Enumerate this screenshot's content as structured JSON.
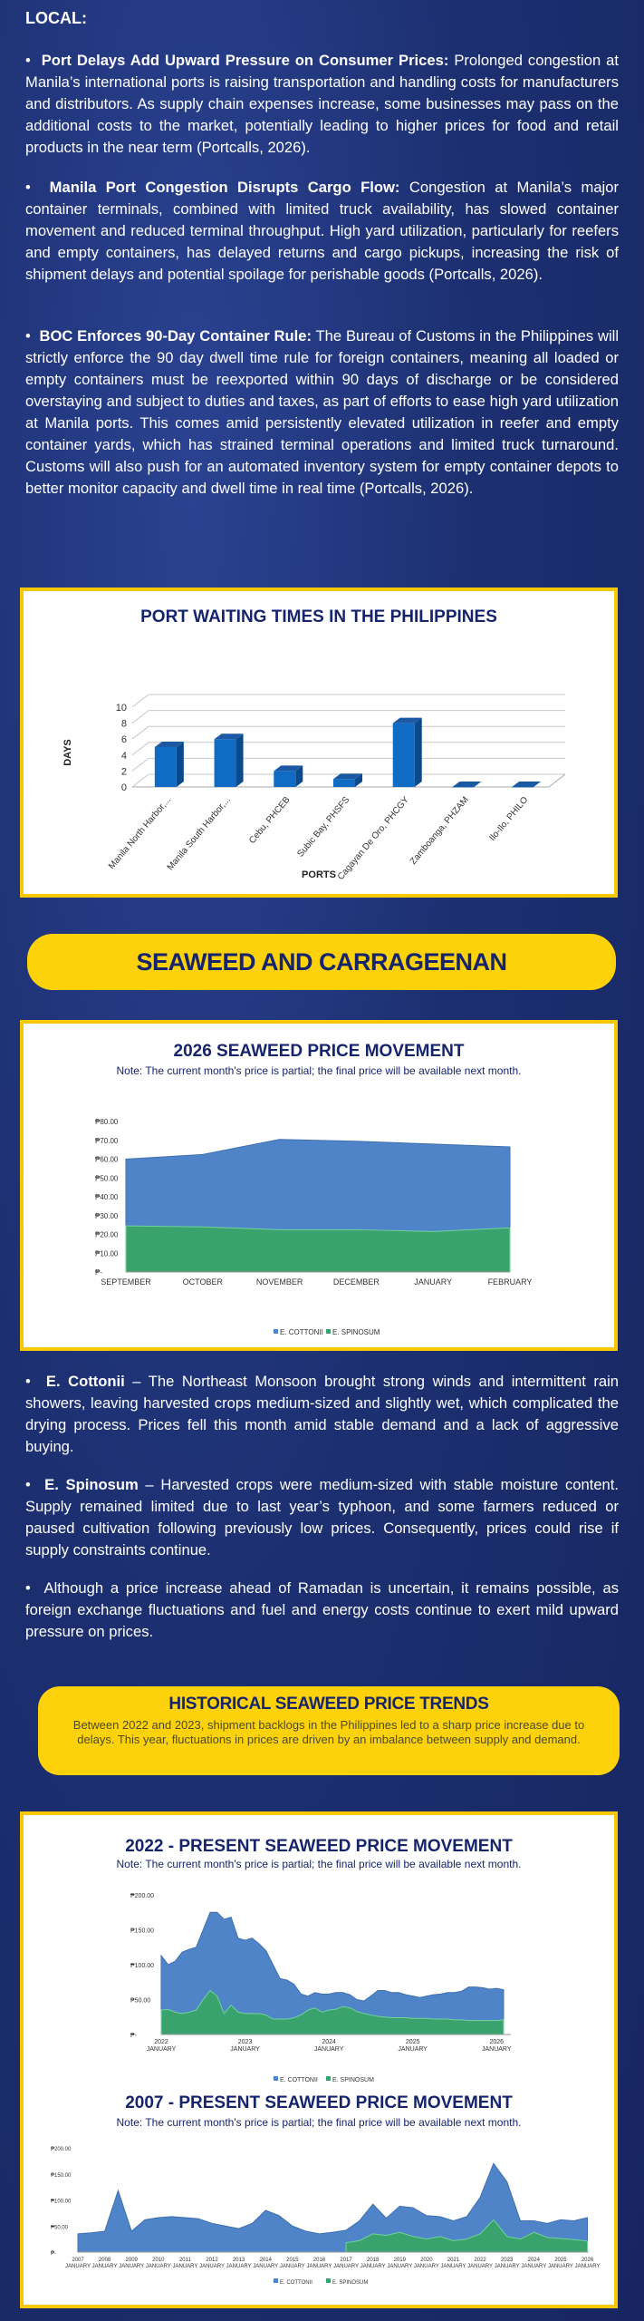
{
  "local": {
    "heading": "LOCAL:",
    "items": [
      {
        "title": "Port Delays Add Upward Pressure on Consumer Prices:",
        "body": " Prolonged congestion at Manila’s international ports is raising transportation and handling costs for manufacturers and distributors. As supply chain expenses increase, some businesses may pass on the additional costs to the market, potentially leading to higher prices for food and retail products in the near term (Portcalls, 2026)."
      },
      {
        "title": "Manila Port Congestion Disrupts Cargo Flow:",
        "body": " Congestion at Manila’s major container terminals, combined with limited truck availability, has slowed container movement and reduced terminal throughput. High yard utilization, particularly for reefers and empty containers, has delayed returns and cargo pickups, increasing the risk of shipment delays and potential spoilage for perishable goods (Portcalls, 2026)."
      },
      {
        "title": "BOC Enforces 90-Day Container Rule:",
        "body": " The Bureau of Customs in the Philippines will strictly enforce the 90 day dwell time rule for foreign containers, meaning all loaded or empty containers must be reexported within 90 days of discharge or be considered overstaying and subject to duties and taxes, as part of efforts to ease high yard utilization at Manila ports. This comes amid persistently elevated utilization in reefer and empty container yards, which has strained terminal operations and limited truck turnaround. Customs will also push for an automated inventory system for empty container depots to better monitor capacity and dwell time in real time (Portcalls, 2026)."
      }
    ]
  },
  "seaweed": {
    "banner": "SEAWEED AND CARRAGEENAN",
    "items": [
      {
        "title": "E. Cottonii",
        "body": " – The Northeast Monsoon brought strong winds and intermittent rain showers, leaving harvested crops medium-sized and slightly wet, which complicated the drying process. Prices fell this month amid stable demand and a lack of aggressive buying."
      },
      {
        "title": "E. Spinosum",
        "body": " – Harvested crops were medium-sized with stable moisture content. Supply remained limited due to last year’s typhoon, and some farmers reduced or paused cultivation following previously low prices. Consequently, prices could rise if supply constraints continue."
      },
      {
        "title": "",
        "body": "Although a price increase ahead of Ramadan is uncertain, it remains possible, as foreign exchange fluctuations and fuel and energy costs continue to exert mild upward pressure on prices."
      }
    ],
    "historical": {
      "title": "HISTORICAL SEAWEED PRICE TRENDS",
      "body": "Between 2022 and 2023, shipment backlogs in the Philippines led to a sharp price increase due to delays. This year, fluctuations in prices are driven by an imbalance between supply and demand."
    }
  },
  "colors": {
    "cottonii": "#4f85c8",
    "spinosum": "#3aa36d",
    "bar": "#0f6bc4",
    "navy": "#16246b",
    "yellow": "#fdd20a"
  },
  "chart_data": [
    {
      "type": "bar",
      "title": "PORT WAITING TIMES IN THE PHILIPPINES",
      "xlabel": "PORTS",
      "ylabel": "DAYS",
      "categories": [
        "Manila North Harbor,...",
        "Manila South Harbor,...",
        "Cebu, PHCEB",
        "Subic Bay, PHSFS",
        "Cagayan De Oro, PHCGY",
        "Zamboanga, PHZAM",
        "Ilo-Ilo, PHILO"
      ],
      "values": [
        5,
        6,
        2,
        1,
        8,
        0,
        0
      ],
      "ylim": [
        0,
        10
      ],
      "yticks": [
        "0",
        "2",
        "4",
        "6",
        "8",
        "10"
      ]
    },
    {
      "type": "area",
      "title": "2026 SEAWEED PRICE MOVEMENT",
      "note": "Note: The current month's price is partial; the final price will be available next month.",
      "xtick_labels": [
        "SEPTEMBER",
        "OCTOBER",
        "NOVEMBER",
        "DECEMBER",
        "JANUARY",
        "FEBRUARY"
      ],
      "x": [
        0,
        1,
        2,
        3,
        4,
        5
      ],
      "yticks": [
        "₱-",
        "₱10.00",
        "₱20.00",
        "₱30.00",
        "₱40.00",
        "₱50.00",
        "₱60.00",
        "₱70.00",
        "₱80.00"
      ],
      "ylim": [
        0,
        80
      ],
      "series": [
        {
          "name": "E. COTTONII",
          "values": [
            60,
            62.5,
            70.5,
            69.5,
            68,
            66.5
          ]
        },
        {
          "name": "E. SPINOSUM",
          "values": [
            24.5,
            24,
            22.5,
            22.5,
            21.5,
            23.5
          ]
        }
      ],
      "legend": "bottom"
    },
    {
      "type": "area",
      "title": "2022 - PRESENT SEAWEED PRICE MOVEMENT",
      "note": "Note: The current month's price is partial; the final price will be available next month.",
      "xtick_labels": [
        [
          "2022",
          "JANUARY"
        ],
        [
          "2023",
          "JANUARY"
        ],
        [
          "2024",
          "JANUARY"
        ],
        [
          "2025",
          "JANUARY"
        ],
        [
          "2026",
          "JANUARY"
        ]
      ],
      "xtick_values": [
        2022,
        2023,
        2024,
        2025,
        2026
      ],
      "x_start": 2022,
      "x_step": 0.08333,
      "yticks": [
        "₱-",
        "₱50.00",
        "₱100.00",
        "₱150.00",
        "₱200.00"
      ],
      "ylim": [
        0,
        200
      ],
      "series": [
        {
          "name": "E. COTTONII",
          "values": [
            113,
            100,
            105,
            118,
            122,
            125,
            150,
            175,
            175,
            165,
            168,
            138,
            135,
            138,
            130,
            120,
            100,
            80,
            78,
            72,
            58,
            55,
            60,
            58,
            58,
            60,
            60,
            57,
            50,
            48,
            55,
            63,
            63,
            60,
            60,
            57,
            55,
            53,
            55,
            57,
            58,
            60,
            60,
            62,
            68,
            68,
            67,
            65,
            66,
            64
          ]
        },
        {
          "name": "E. SPINOSUM",
          "values": [
            35,
            36,
            32,
            30,
            32,
            35,
            50,
            63,
            55,
            30,
            42,
            32,
            30,
            30,
            30,
            28,
            22,
            22,
            22,
            24,
            28,
            35,
            38,
            32,
            35,
            36,
            40,
            38,
            33,
            30,
            28,
            26,
            25,
            24,
            24,
            24,
            23,
            23,
            23,
            22,
            22,
            22,
            21,
            21,
            20,
            20,
            20,
            20,
            20,
            21
          ]
        }
      ],
      "legend": "bottom"
    },
    {
      "type": "area",
      "title": "2007 - PRESENT SEAWEED PRICE MOVEMENT",
      "note": "Note: The current month's price is partial; the final price will be available next month.",
      "xtick_labels": [
        [
          "2007",
          "JANUARY"
        ],
        [
          "2008",
          "JANUARY"
        ],
        [
          "2009",
          "JANUARY"
        ],
        [
          "2010",
          "JANUARY"
        ],
        [
          "2011",
          "JANUARY"
        ],
        [
          "2012",
          "JANUARY"
        ],
        [
          "2013",
          "JANUARY"
        ],
        [
          "2014",
          "JANUARY"
        ],
        [
          "2015",
          "JANUARY"
        ],
        [
          "2016",
          "JANUARY"
        ],
        [
          "2017",
          "JANUARY"
        ],
        [
          "2018",
          "JANUARY"
        ],
        [
          "2019",
          "JANUARY"
        ],
        [
          "2020",
          "JANUARY"
        ],
        [
          "2021",
          "JANUARY"
        ],
        [
          "2022",
          "JANUARY"
        ],
        [
          "2023",
          "JANUARY"
        ],
        [
          "2024",
          "JANUARY"
        ],
        [
          "2025",
          "JANUARY"
        ],
        [
          "2026",
          "JANUARY"
        ]
      ],
      "xtick_values": [
        2007,
        2008,
        2009,
        2010,
        2011,
        2012,
        2013,
        2014,
        2015,
        2016,
        2017,
        2018,
        2019,
        2020,
        2021,
        2022,
        2023,
        2024,
        2025,
        2026
      ],
      "x_start": 2007,
      "x_step": 0.5,
      "yticks": [
        "₱-",
        "₱50.00",
        "₱100.00",
        "₱150.00",
        "₱200.00"
      ],
      "ylim": [
        0,
        200
      ],
      "series": [
        {
          "name": "E. COTTONII",
          "values": [
            35,
            37,
            40,
            118,
            40,
            62,
            66,
            68,
            66,
            64,
            55,
            50,
            45,
            55,
            80,
            70,
            50,
            40,
            35,
            38,
            42,
            60,
            92,
            65,
            88,
            85,
            70,
            68,
            60,
            68,
            105,
            170,
            135,
            60,
            60,
            55,
            62,
            60,
            66
          ]
        },
        {
          "name": "E. SPINOSUM",
          "values": [
            0,
            0,
            0,
            0,
            0,
            0,
            0,
            0,
            0,
            0,
            0,
            0,
            0,
            0,
            0,
            0,
            0,
            0,
            0,
            0,
            18,
            22,
            35,
            32,
            38,
            30,
            25,
            30,
            22,
            25,
            35,
            62,
            30,
            25,
            38,
            28,
            26,
            24,
            21
          ]
        }
      ],
      "legend": "bottom"
    }
  ]
}
